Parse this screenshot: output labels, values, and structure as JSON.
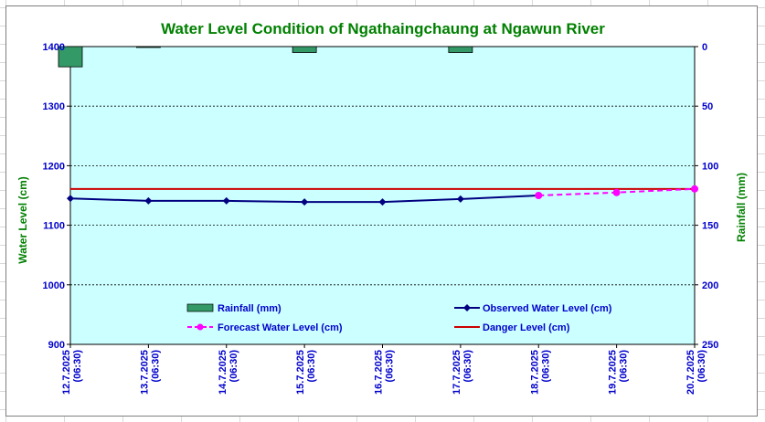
{
  "chart_data": {
    "type": "line",
    "title": "Water Level Condition of  Ngathaingchaung at Ngawun River",
    "ylabel": "Water Level (cm)",
    "y2label": "Rainfall (mm)",
    "ylim": [
      900,
      1400
    ],
    "y_ticks": [
      "900",
      "1000",
      "1100",
      "1200",
      "1300",
      "1400"
    ],
    "y2lim": [
      0,
      250
    ],
    "y2_inverted": true,
    "y2_ticks": [
      "0",
      "50",
      "100",
      "150",
      "200",
      "250"
    ],
    "categories": [
      [
        "12.7.2025",
        "(06:30)"
      ],
      [
        "13.7.2025",
        "(06:30)"
      ],
      [
        "14.7.2025",
        "(06:30)"
      ],
      [
        "15.7.2025",
        "(06:30)"
      ],
      [
        "16.7.2025",
        "(06:30)"
      ],
      [
        "17.7.2025",
        "(06:30)"
      ],
      [
        "18.7.2025",
        "(06:30)"
      ],
      [
        "19.7.2025",
        "(06:30)"
      ],
      [
        "20.7.2025",
        "(06:30)"
      ]
    ],
    "grid": "horizontal dotted",
    "legend_placement": "bottom, inside plot",
    "series": [
      {
        "name": "Rainfall (mm)",
        "kind": "bar",
        "axis": "right",
        "color": "#339966",
        "values": [
          17,
          0.5,
          null,
          5,
          null,
          5,
          null,
          null,
          null
        ]
      },
      {
        "name": "Observed Water Level (cm)",
        "kind": "line",
        "axis": "left",
        "color": "#000080",
        "values": [
          1145,
          1141,
          1141,
          1139,
          1139,
          1144,
          1150,
          null,
          null
        ]
      },
      {
        "name": "Forecast Water Level (cm)",
        "kind": "dashed-line",
        "axis": "left",
        "color": "#ff00ff",
        "values": [
          null,
          null,
          null,
          null,
          null,
          null,
          1150,
          1155,
          1161
        ]
      },
      {
        "name": "Danger Level (cm)",
        "kind": "line",
        "axis": "left",
        "color": "#cc0000",
        "values": [
          1161,
          1161,
          1161,
          1161,
          1161,
          1161,
          1161,
          1161,
          1161
        ]
      }
    ]
  },
  "colors": {
    "plot_background": "#ccffff",
    "title": "#008000",
    "axis_text": "#0000cc"
  }
}
